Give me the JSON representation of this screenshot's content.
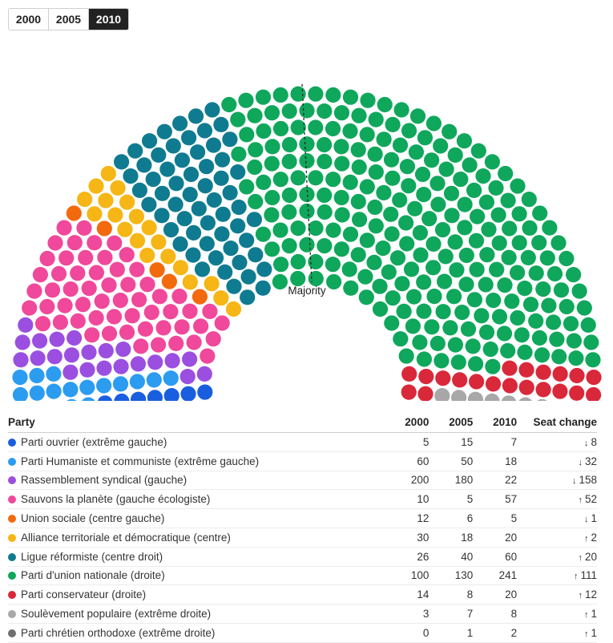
{
  "year_selector": {
    "options": [
      "2000",
      "2005",
      "2010"
    ],
    "selected": "2010"
  },
  "chart_data": {
    "type": "parliament-hemicycle",
    "year_shown": "2010",
    "total_seats": 460,
    "majority_label": "Majority",
    "parties": [
      {
        "name": "Parti ouvrier (extrême gauche)",
        "color": "#1a5ee0",
        "seats_2000": 5,
        "seats_2005": 15,
        "seats_2010": 7,
        "change": "8",
        "direction": "down"
      },
      {
        "name": "Parti Humaniste et communiste (extrême gauche)",
        "color": "#2b9cf0",
        "seats_2000": 60,
        "seats_2005": 50,
        "seats_2010": 18,
        "change": "32",
        "direction": "down"
      },
      {
        "name": "Rassemblement syndical (gauche)",
        "color": "#9b4fe0",
        "seats_2000": 200,
        "seats_2005": 180,
        "seats_2010": 22,
        "change": "158",
        "direction": "down"
      },
      {
        "name": "Sauvons la planète (gauche écologiste)",
        "color": "#f0489a",
        "seats_2000": 10,
        "seats_2005": 5,
        "seats_2010": 57,
        "change": "52",
        "direction": "up"
      },
      {
        "name": "Union sociale (centre gauche)",
        "color": "#f26a0d",
        "seats_2000": 12,
        "seats_2005": 6,
        "seats_2010": 5,
        "change": "1",
        "direction": "down"
      },
      {
        "name": "Alliance territoriale et démocratique (centre)",
        "color": "#f5b616",
        "seats_2000": 30,
        "seats_2005": 18,
        "seats_2010": 20,
        "change": "2",
        "direction": "up"
      },
      {
        "name": "Ligue réformiste (centre droit)",
        "color": "#0f7b91",
        "seats_2000": 26,
        "seats_2005": 40,
        "seats_2010": 60,
        "change": "20",
        "direction": "up"
      },
      {
        "name": "Parti d'union nationale (droite)",
        "color": "#0fa75b",
        "seats_2000": 100,
        "seats_2005": 130,
        "seats_2010": 241,
        "change": "111",
        "direction": "up"
      },
      {
        "name": "Parti conservateur (droite)",
        "color": "#d9283a",
        "seats_2000": 14,
        "seats_2005": 8,
        "seats_2010": 20,
        "change": "12",
        "direction": "up"
      },
      {
        "name": "Soulèvement populaire (extrême droite)",
        "color": "#a8a8a8",
        "seats_2000": 3,
        "seats_2005": 7,
        "seats_2010": 8,
        "change": "1",
        "direction": "up"
      },
      {
        "name": "Parti chrétien orthodoxe (extrême droite)",
        "color": "#6f6f6f",
        "seats_2000": 0,
        "seats_2005": 1,
        "seats_2010": 2,
        "change": "1",
        "direction": "up"
      }
    ]
  },
  "table": {
    "headers": {
      "party": "Party",
      "y2000": "2000",
      "y2005": "2005",
      "y2010": "2010",
      "change": "Seat change"
    },
    "colors": {
      "down": "#d4303a",
      "up": "#1f8a4c"
    }
  }
}
